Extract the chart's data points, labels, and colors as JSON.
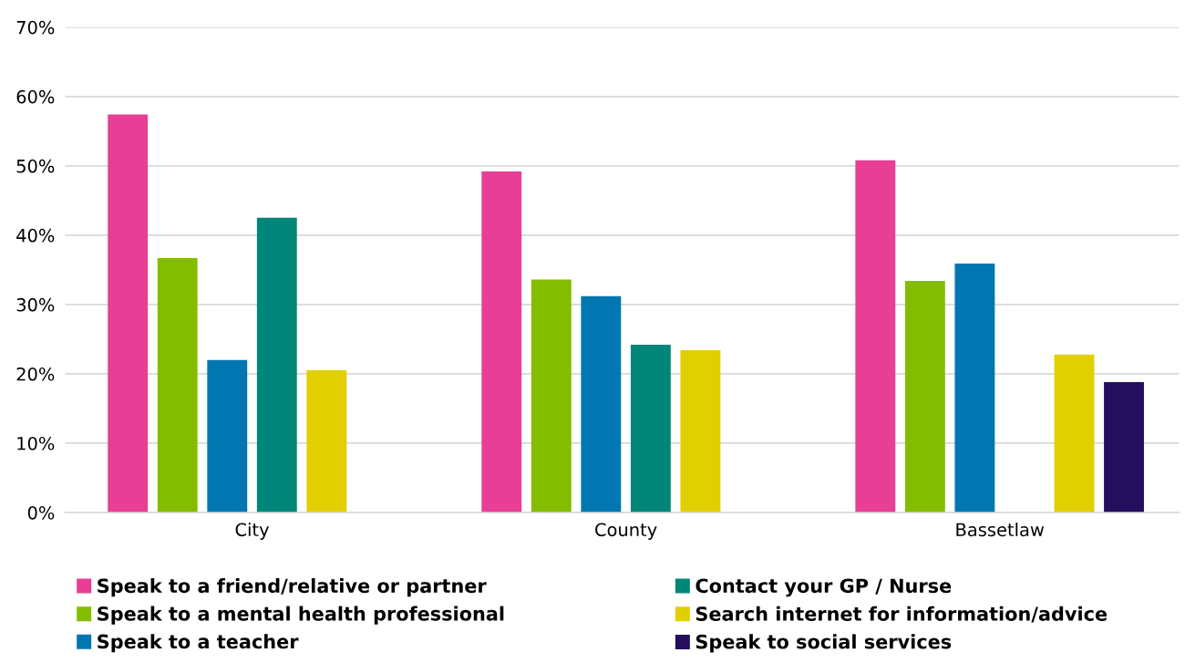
{
  "chart_data": {
    "type": "bar",
    "categories": [
      "City",
      "County",
      "Bassetlaw"
    ],
    "series": [
      {
        "name": "Speak to a friend/relative or partner",
        "color": "#e83e96",
        "values": [
          57.4,
          49.2,
          50.8
        ]
      },
      {
        "name": "Speak to a mental health professional",
        "color": "#84bd00",
        "values": [
          36.7,
          33.6,
          33.4
        ]
      },
      {
        "name": "Speak to a teacher",
        "color": "#0077b0",
        "values": [
          22.0,
          31.2,
          35.9
        ]
      },
      {
        "name": "Contact your GP / Nurse",
        "color": "#00877a",
        "values": [
          42.5,
          24.2,
          null
        ]
      },
      {
        "name": "Search internet for information/advice",
        "color": "#e2cf00",
        "values": [
          20.5,
          23.4,
          22.8
        ]
      },
      {
        "name": "Speak to social services",
        "color": "#230f5e",
        "values": [
          null,
          null,
          18.8
        ]
      }
    ],
    "ylim": [
      0,
      70
    ],
    "yticks": [
      {
        "value": 0,
        "label": "0%"
      },
      {
        "value": 10,
        "label": "10%"
      },
      {
        "value": 20,
        "label": "20%"
      },
      {
        "value": 30,
        "label": "30%"
      },
      {
        "value": 40,
        "label": "40%"
      },
      {
        "value": 50,
        "label": "50%"
      },
      {
        "value": 60,
        "label": "60%"
      },
      {
        "value": 70,
        "label": "70%"
      }
    ],
    "grid": "y",
    "legend": "bottom"
  }
}
